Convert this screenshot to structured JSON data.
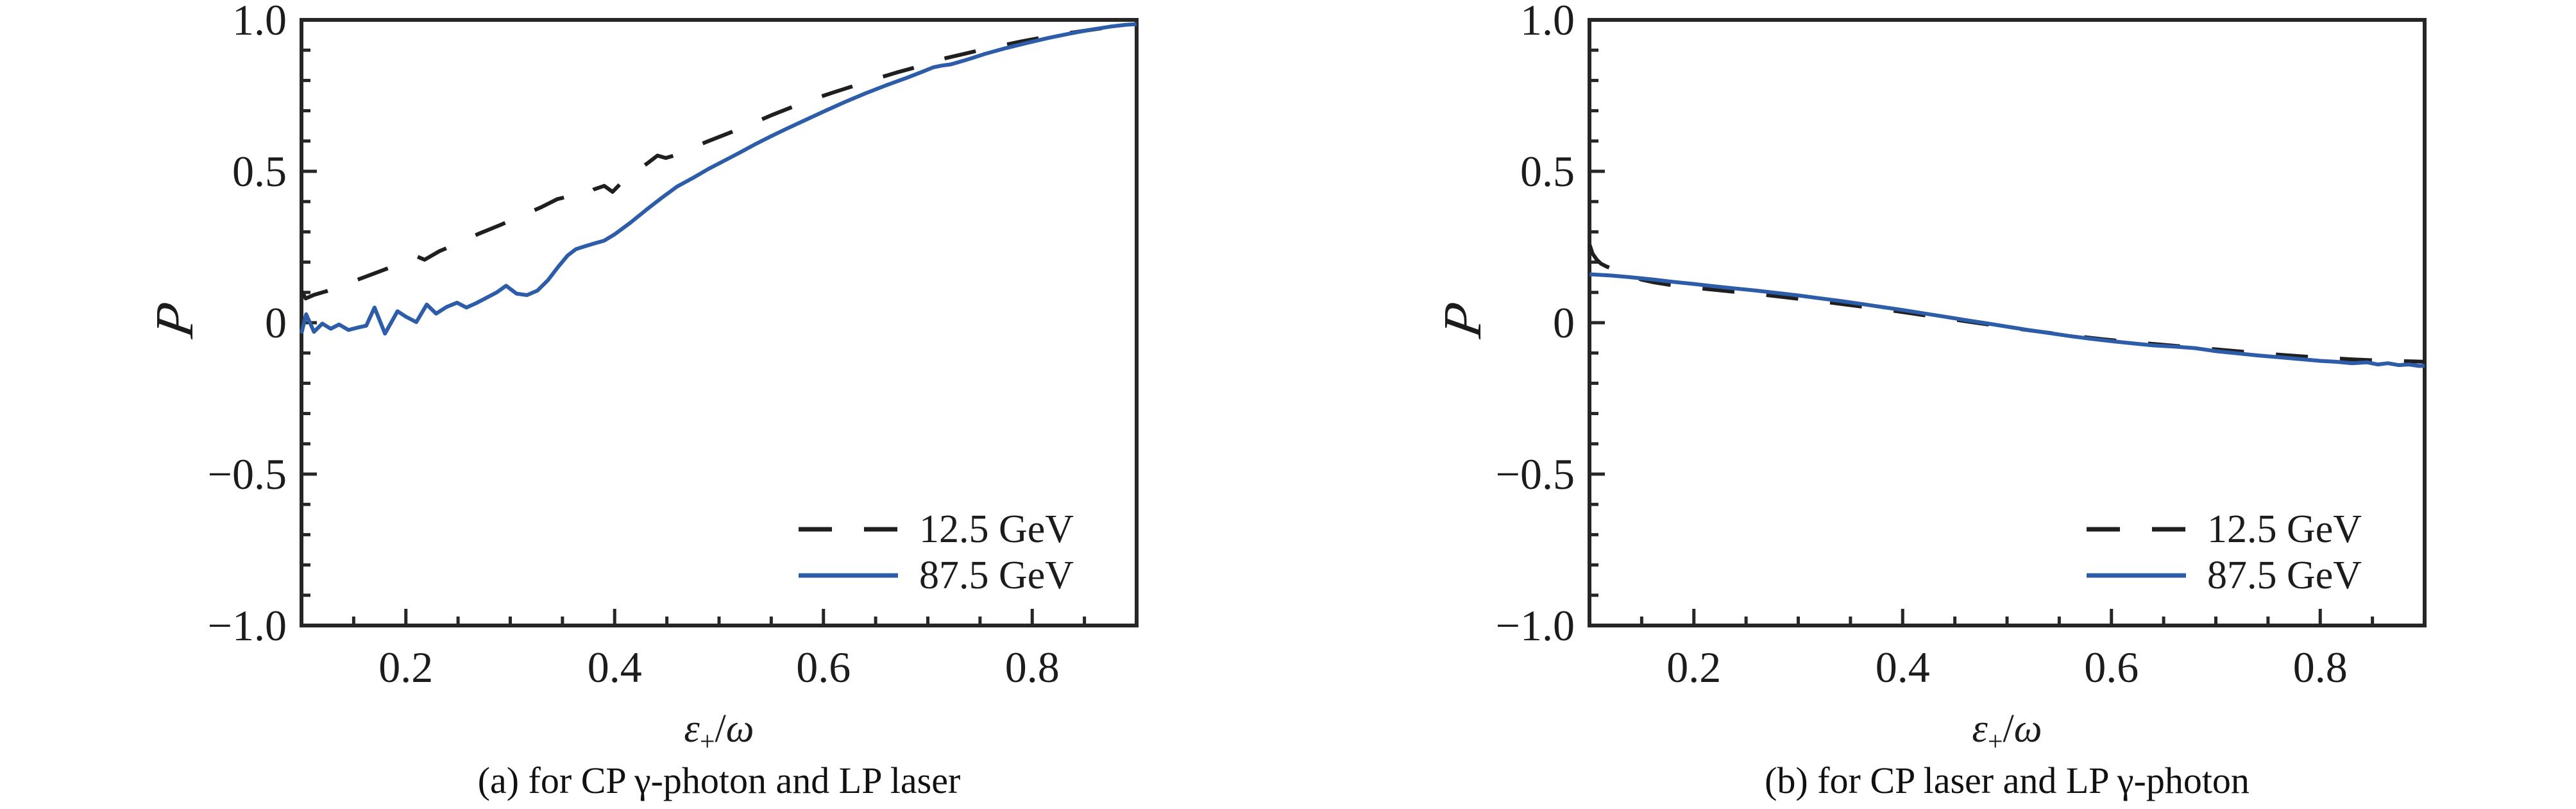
{
  "figure": {
    "background": "#ffffff",
    "text_color": "#1c1c1c",
    "accent_blue": "#2d5da9",
    "curve_black": "#1f1f1f"
  },
  "panels": [
    {
      "id": "a",
      "caption": "(a) for CP γ-photon and LP laser",
      "ylabel": "P",
      "xlabel": {
        "symbol": "ε",
        "subscript": "+",
        "slash": "/",
        "denominator": "ω"
      }
    },
    {
      "id": "b",
      "caption": "(b) for CP laser and LP γ-photon",
      "ylabel": "P",
      "xlabel": {
        "symbol": "ε",
        "subscript": "+",
        "slash": "/",
        "denominator": "ω"
      }
    }
  ],
  "chart_data": [
    {
      "id": "a",
      "type": "line",
      "title": "(a) for CP γ-photon and LP laser",
      "xlabel": "ε₊/ω",
      "ylabel": "𝒫",
      "xlim": [
        0.1,
        0.9
      ],
      "ylim": [
        -1.0,
        1.0
      ],
      "grid": false,
      "legend_position": "lower right",
      "x_major_ticks": [
        0.2,
        0.4,
        0.6,
        0.8
      ],
      "x_tick_labels": [
        "0.2",
        "0.4",
        "0.6",
        "0.8"
      ],
      "x_minor_ticks": [
        0.15,
        0.25,
        0.3,
        0.35,
        0.45,
        0.5,
        0.55,
        0.65,
        0.7,
        0.75,
        0.85
      ],
      "y_major_ticks": [
        0.5,
        0,
        -0.5
      ],
      "y_minor_ticks": [
        0.9,
        0.8,
        0.7,
        0.6,
        0.4,
        0.3,
        0.2,
        0.1,
        -0.1,
        -0.2,
        -0.3,
        -0.4,
        -0.6,
        -0.7,
        -0.8,
        -0.9
      ],
      "y_tick_labels": [
        {
          "v": 1.0,
          "t": "1.0"
        },
        {
          "v": 0.5,
          "t": "0.5"
        },
        {
          "v": 0.0,
          "t": "0"
        },
        {
          "v": -0.5,
          "t": "−0.5"
        },
        {
          "v": -1.0,
          "t": "−1.0"
        }
      ],
      "series": [
        {
          "name": "12.5 GeV",
          "style": "dashed",
          "color": "#1f1f1f",
          "points": [
            [
              0.1,
              0.105
            ],
            [
              0.104,
              0.08
            ],
            [
              0.112,
              0.092
            ],
            [
              0.125,
              0.105
            ],
            [
              0.14,
              0.125
            ],
            [
              0.16,
              0.15
            ],
            [
              0.18,
              0.176
            ],
            [
              0.2,
              0.202
            ],
            [
              0.211,
              0.218
            ],
            [
              0.218,
              0.208
            ],
            [
              0.232,
              0.236
            ],
            [
              0.25,
              0.262
            ],
            [
              0.27,
              0.294
            ],
            [
              0.29,
              0.322
            ],
            [
              0.31,
              0.352
            ],
            [
              0.33,
              0.382
            ],
            [
              0.345,
              0.408
            ],
            [
              0.357,
              0.418
            ],
            [
              0.368,
              0.412
            ],
            [
              0.38,
              0.44
            ],
            [
              0.39,
              0.452
            ],
            [
              0.398,
              0.432
            ],
            [
              0.408,
              0.468
            ],
            [
              0.42,
              0.498
            ],
            [
              0.432,
              0.528
            ],
            [
              0.441,
              0.552
            ],
            [
              0.449,
              0.544
            ],
            [
              0.458,
              0.553
            ],
            [
              0.47,
              0.572
            ],
            [
              0.49,
              0.6
            ],
            [
              0.51,
              0.627
            ],
            [
              0.53,
              0.655
            ],
            [
              0.55,
              0.685
            ],
            [
              0.57,
              0.712
            ],
            [
              0.59,
              0.738
            ],
            [
              0.61,
              0.761
            ],
            [
              0.63,
              0.783
            ],
            [
              0.65,
              0.805
            ],
            [
              0.67,
              0.826
            ],
            [
              0.69,
              0.845
            ],
            [
              0.71,
              0.868
            ],
            [
              0.73,
              0.884
            ],
            [
              0.75,
              0.9
            ],
            [
              0.77,
              0.915
            ],
            [
              0.79,
              0.929
            ],
            [
              0.81,
              0.942
            ],
            [
              0.83,
              0.954
            ],
            [
              0.85,
              0.964
            ],
            [
              0.87,
              0.974
            ],
            [
              0.885,
              0.981
            ],
            [
              0.9,
              0.986
            ]
          ]
        },
        {
          "name": "87.5 GeV",
          "style": "solid",
          "color": "#2d5da9",
          "points": [
            [
              0.1,
              -0.035
            ],
            [
              0.1045,
              0.028
            ],
            [
              0.112,
              -0.03
            ],
            [
              0.12,
              -0.003
            ],
            [
              0.128,
              -0.02
            ],
            [
              0.136,
              -0.006
            ],
            [
              0.145,
              -0.024
            ],
            [
              0.154,
              -0.016
            ],
            [
              0.162,
              -0.01
            ],
            [
              0.17,
              0.05
            ],
            [
              0.18,
              -0.036
            ],
            [
              0.192,
              0.038
            ],
            [
              0.2,
              0.02
            ],
            [
              0.21,
              0.002
            ],
            [
              0.22,
              0.06
            ],
            [
              0.229,
              0.03
            ],
            [
              0.239,
              0.052
            ],
            [
              0.249,
              0.066
            ],
            [
              0.258,
              0.05
            ],
            [
              0.267,
              0.064
            ],
            [
              0.277,
              0.082
            ],
            [
              0.287,
              0.1
            ],
            [
              0.296,
              0.122
            ],
            [
              0.306,
              0.096
            ],
            [
              0.316,
              0.091
            ],
            [
              0.326,
              0.106
            ],
            [
              0.336,
              0.14
            ],
            [
              0.346,
              0.185
            ],
            [
              0.355,
              0.222
            ],
            [
              0.363,
              0.243
            ],
            [
              0.372,
              0.253
            ],
            [
              0.381,
              0.262
            ],
            [
              0.39,
              0.271
            ],
            [
              0.4,
              0.292
            ],
            [
              0.415,
              0.33
            ],
            [
              0.43,
              0.372
            ],
            [
              0.445,
              0.412
            ],
            [
              0.46,
              0.45
            ],
            [
              0.475,
              0.478
            ],
            [
              0.49,
              0.508
            ],
            [
              0.505,
              0.535
            ],
            [
              0.52,
              0.562
            ],
            [
              0.535,
              0.59
            ],
            [
              0.55,
              0.616
            ],
            [
              0.565,
              0.641
            ],
            [
              0.58,
              0.665
            ],
            [
              0.6,
              0.697
            ],
            [
              0.62,
              0.728
            ],
            [
              0.64,
              0.757
            ],
            [
              0.66,
              0.784
            ],
            [
              0.68,
              0.809
            ],
            [
              0.695,
              0.829
            ],
            [
              0.705,
              0.843
            ],
            [
              0.713,
              0.849
            ],
            [
              0.722,
              0.853
            ],
            [
              0.737,
              0.868
            ],
            [
              0.755,
              0.888
            ],
            [
              0.775,
              0.907
            ],
            [
              0.795,
              0.924
            ],
            [
              0.815,
              0.94
            ],
            [
              0.835,
              0.954
            ],
            [
              0.855,
              0.967
            ],
            [
              0.875,
              0.978
            ],
            [
              0.89,
              0.984
            ],
            [
              0.9,
              0.986
            ]
          ]
        }
      ]
    },
    {
      "id": "b",
      "type": "line",
      "title": "(b) for CP laser and LP γ-photon",
      "xlabel": "ε₊/ω",
      "ylabel": "𝒫",
      "xlim": [
        0.1,
        0.9
      ],
      "ylim": [
        -1.0,
        1.0
      ],
      "grid": false,
      "legend_position": "lower right",
      "x_major_ticks": [
        0.2,
        0.4,
        0.6,
        0.8
      ],
      "x_tick_labels": [
        "0.2",
        "0.4",
        "0.6",
        "0.8"
      ],
      "x_minor_ticks": [
        0.15,
        0.25,
        0.3,
        0.35,
        0.45,
        0.5,
        0.55,
        0.65,
        0.7,
        0.75,
        0.85
      ],
      "y_major_ticks": [
        0.5,
        0,
        -0.5
      ],
      "y_minor_ticks": [
        0.9,
        0.8,
        0.7,
        0.6,
        0.4,
        0.3,
        0.2,
        0.1,
        -0.1,
        -0.2,
        -0.3,
        -0.4,
        -0.6,
        -0.7,
        -0.8,
        -0.9
      ],
      "y_tick_labels": [
        {
          "v": 1.0,
          "t": "1.0"
        },
        {
          "v": 0.5,
          "t": "0.5"
        },
        {
          "v": 0.0,
          "t": "0"
        },
        {
          "v": -0.5,
          "t": "−0.5"
        },
        {
          "v": -1.0,
          "t": "−1.0"
        }
      ],
      "series": [
        {
          "name": "12.5 GeV",
          "style": "dashed",
          "color": "#1f1f1f",
          "points": [
            [
              0.1,
              0.259
            ],
            [
              0.103,
              0.228
            ],
            [
              0.107,
              0.208
            ],
            [
              0.111,
              0.195
            ],
            [
              0.116,
              0.186
            ],
            [
              0.122,
              0.178
            ],
            [
              0.13,
              0.168
            ],
            [
              0.14,
              0.155
            ],
            [
              0.15,
              0.142
            ],
            [
              0.162,
              0.133
            ],
            [
              0.175,
              0.126
            ],
            [
              0.19,
              0.119
            ],
            [
              0.21,
              0.112
            ],
            [
              0.23,
              0.105
            ],
            [
              0.25,
              0.098
            ],
            [
              0.27,
              0.091
            ],
            [
              0.29,
              0.083
            ],
            [
              0.31,
              0.075
            ],
            [
              0.33,
              0.067
            ],
            [
              0.35,
              0.058
            ],
            [
              0.37,
              0.049
            ],
            [
              0.39,
              0.04
            ],
            [
              0.41,
              0.03
            ],
            [
              0.43,
              0.02
            ],
            [
              0.45,
              0.01
            ],
            [
              0.47,
              0.0
            ],
            [
              0.49,
              -0.01
            ],
            [
              0.51,
              -0.02
            ],
            [
              0.53,
              -0.029
            ],
            [
              0.55,
              -0.038
            ],
            [
              0.57,
              -0.046
            ],
            [
              0.59,
              -0.054
            ],
            [
              0.61,
              -0.061
            ],
            [
              0.63,
              -0.067
            ],
            [
              0.65,
              -0.073
            ],
            [
              0.67,
              -0.079
            ],
            [
              0.69,
              -0.085
            ],
            [
              0.71,
              -0.091
            ],
            [
              0.73,
              -0.097
            ],
            [
              0.75,
              -0.103
            ],
            [
              0.77,
              -0.108
            ],
            [
              0.79,
              -0.113
            ],
            [
              0.81,
              -0.117
            ],
            [
              0.83,
              -0.121
            ],
            [
              0.85,
              -0.124
            ],
            [
              0.87,
              -0.126
            ],
            [
              0.89,
              -0.128
            ],
            [
              0.9,
              -0.129
            ]
          ]
        },
        {
          "name": "87.5 GeV",
          "style": "solid",
          "color": "#2d5da9",
          "points": [
            [
              0.1,
              0.16
            ],
            [
              0.12,
              0.156
            ],
            [
              0.14,
              0.15
            ],
            [
              0.16,
              0.143
            ],
            [
              0.18,
              0.135
            ],
            [
              0.2,
              0.128
            ],
            [
              0.22,
              0.12
            ],
            [
              0.24,
              0.113
            ],
            [
              0.26,
              0.106
            ],
            [
              0.28,
              0.098
            ],
            [
              0.3,
              0.09
            ],
            [
              0.32,
              0.081
            ],
            [
              0.34,
              0.072
            ],
            [
              0.36,
              0.062
            ],
            [
              0.38,
              0.052
            ],
            [
              0.4,
              0.042
            ],
            [
              0.42,
              0.031
            ],
            [
              0.44,
              0.02
            ],
            [
              0.46,
              0.009
            ],
            [
              0.48,
              -0.002
            ],
            [
              0.5,
              -0.013
            ],
            [
              0.52,
              -0.024
            ],
            [
              0.54,
              -0.034
            ],
            [
              0.56,
              -0.044
            ],
            [
              0.58,
              -0.053
            ],
            [
              0.6,
              -0.061
            ],
            [
              0.62,
              -0.068
            ],
            [
              0.64,
              -0.075
            ],
            [
              0.66,
              -0.079
            ],
            [
              0.68,
              -0.084
            ],
            [
              0.7,
              -0.094
            ],
            [
              0.72,
              -0.101
            ],
            [
              0.74,
              -0.108
            ],
            [
              0.76,
              -0.114
            ],
            [
              0.78,
              -0.12
            ],
            [
              0.8,
              -0.126
            ],
            [
              0.815,
              -0.129
            ],
            [
              0.83,
              -0.134
            ],
            [
              0.845,
              -0.131
            ],
            [
              0.855,
              -0.138
            ],
            [
              0.865,
              -0.134
            ],
            [
              0.875,
              -0.14
            ],
            [
              0.885,
              -0.138
            ],
            [
              0.895,
              -0.143
            ],
            [
              0.9,
              -0.142
            ]
          ]
        }
      ]
    }
  ]
}
